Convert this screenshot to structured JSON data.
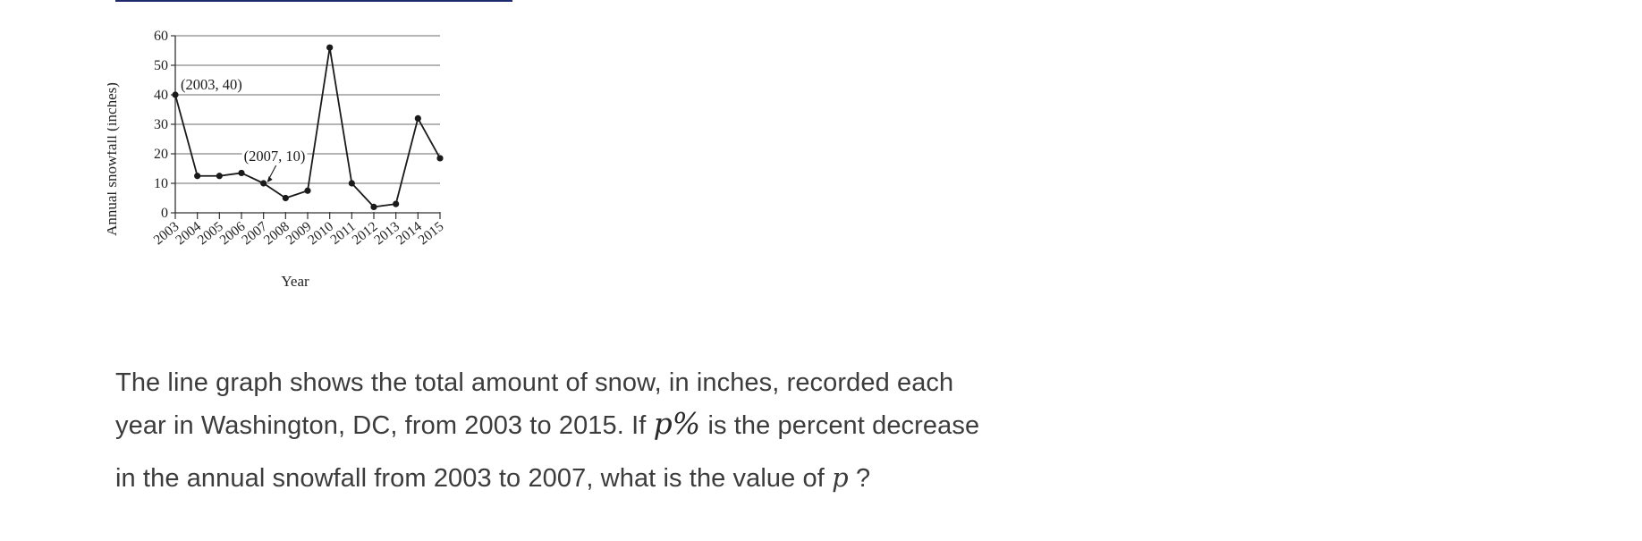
{
  "chart_data": {
    "type": "line",
    "xlabel": "Year",
    "ylabel": "Annual snowfall (inches)",
    "ylim": [
      0,
      60
    ],
    "yticks": [
      0,
      10,
      20,
      30,
      40,
      50,
      60
    ],
    "grid": "horizontal",
    "x": [
      "2003",
      "2004",
      "2005",
      "2006",
      "2007",
      "2008",
      "2009",
      "2010",
      "2011",
      "2012",
      "2013",
      "2014",
      "2015"
    ],
    "values": [
      40,
      12.5,
      12.5,
      13.5,
      10,
      5,
      7.5,
      56,
      10,
      2,
      3,
      32,
      18.5
    ],
    "annotations": [
      {
        "text": "(2003, 40)",
        "x": "2003",
        "y": 40
      },
      {
        "text": "(2007, 10)",
        "x": "2007",
        "y": 10
      }
    ]
  },
  "question": {
    "line1": "The line graph shows the total amount of snow, in inches, recorded each",
    "line2_pre": "year in Washington, DC, from 2003 to 2015. If",
    "math_expr": "p%",
    "line2_post": "is the percent decrease",
    "line3_pre": "in the annual snowfall from 2003 to 2007, what is the value of",
    "var": "p",
    "line3_post": "?"
  }
}
